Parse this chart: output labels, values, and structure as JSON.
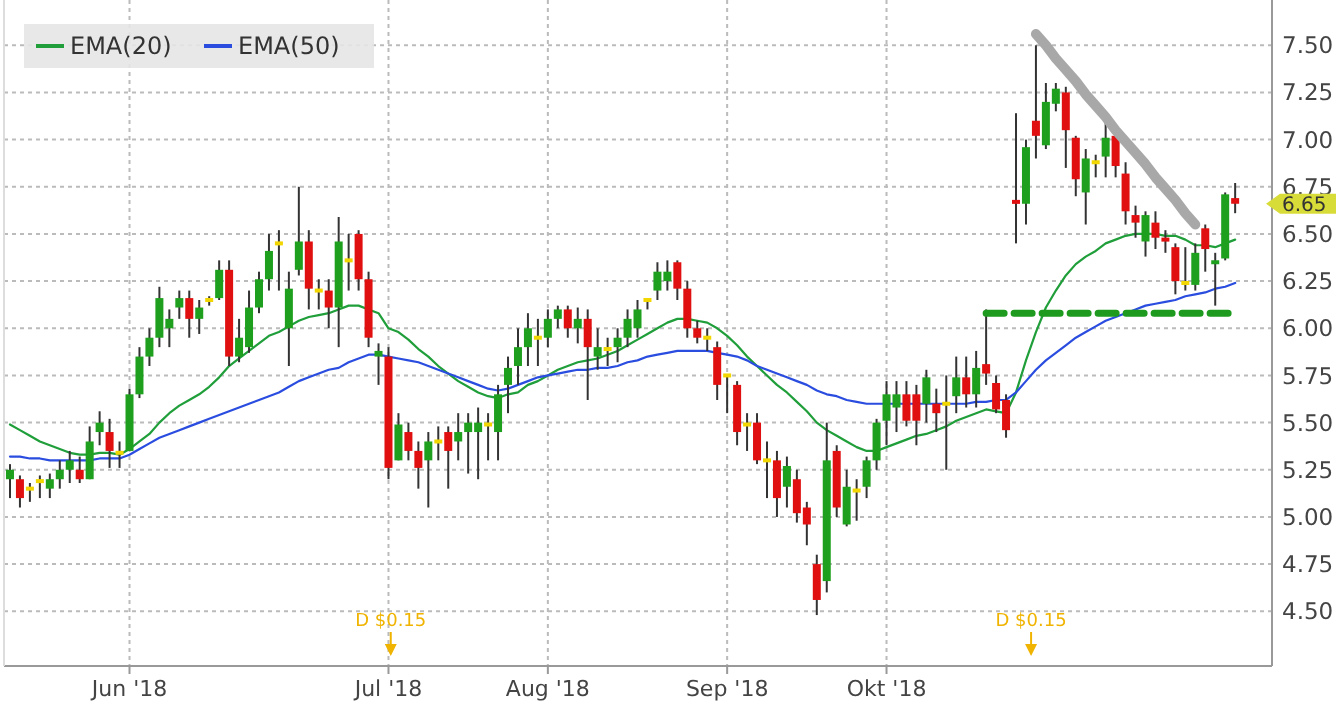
{
  "chart_data": {
    "type": "candlestick",
    "legend": "top left",
    "grid": true,
    "categories": [
      null,
      null,
      null,
      null,
      null,
      null,
      null,
      null,
      null,
      null,
      null,
      null,
      "Jun '18",
      null,
      null,
      null,
      null,
      null,
      null,
      null,
      null,
      null,
      null,
      null,
      null,
      null,
      null,
      null,
      null,
      null,
      null,
      null,
      null,
      null,
      null,
      null,
      null,
      null,
      "Jul '18",
      null,
      null,
      null,
      null,
      null,
      null,
      null,
      null,
      null,
      null,
      null,
      null,
      null,
      null,
      null,
      "Aug '18",
      null,
      null,
      null,
      null,
      null,
      null,
      null,
      null,
      null,
      null,
      null,
      null,
      null,
      null,
      null,
      null,
      null,
      "Sep '18",
      null,
      null,
      null,
      null,
      null,
      null,
      null,
      null,
      null,
      null,
      null,
      null,
      null,
      null,
      null,
      "Okt '18",
      null,
      null,
      null,
      null,
      null,
      null,
      null,
      null,
      null,
      null,
      null,
      null,
      null,
      null,
      null,
      null,
      null,
      null,
      null,
      null,
      null,
      null,
      null,
      null,
      null,
      null,
      null,
      null,
      null,
      null,
      null,
      null,
      null,
      null,
      null
    ],
    "ylim": [
      4.21,
      7.74
    ],
    "yticks": [
      {
        "value": 4.5,
        "label": "4.50"
      },
      {
        "value": 4.75,
        "label": "4.75"
      },
      {
        "value": 5,
        "label": "5.00"
      },
      {
        "value": 5.25,
        "label": "5.25"
      },
      {
        "value": 5.5,
        "label": "5.50"
      },
      {
        "value": 5.75,
        "label": "5.75"
      },
      {
        "value": 6,
        "label": "6.00"
      },
      {
        "value": 6.25,
        "label": "6.25"
      },
      {
        "value": 6.5,
        "label": "6.50"
      },
      {
        "value": 6.75,
        "label": "6.75"
      },
      {
        "value": 7,
        "label": "7.00"
      },
      {
        "value": 7.25,
        "label": "7.25"
      },
      {
        "value": 7.5,
        "label": "7.50"
      }
    ],
    "ohlc": [
      [
        5.2,
        5.28,
        5.1,
        5.25
      ],
      [
        5.2,
        5.22,
        5.05,
        5.1
      ],
      [
        5.15,
        5.18,
        5.08,
        5.15
      ],
      [
        5.19,
        5.22,
        5.1,
        5.19
      ],
      [
        5.15,
        5.23,
        5.1,
        5.2
      ],
      [
        5.2,
        5.3,
        5.15,
        5.25
      ],
      [
        5.25,
        5.35,
        5.18,
        5.3
      ],
      [
        5.25,
        5.32,
        5.18,
        5.2
      ],
      [
        5.2,
        5.48,
        5.2,
        5.4
      ],
      [
        5.45,
        5.56,
        5.38,
        5.5
      ],
      [
        5.45,
        5.52,
        5.26,
        5.35
      ],
      [
        5.34,
        5.4,
        5.26,
        5.34
      ],
      [
        5.35,
        5.68,
        5.35,
        5.65
      ],
      [
        5.65,
        5.9,
        5.63,
        5.85
      ],
      [
        5.85,
        6.0,
        5.8,
        5.95
      ],
      [
        5.95,
        6.22,
        5.9,
        6.16
      ],
      [
        6.0,
        6.1,
        5.9,
        6.05
      ],
      [
        6.11,
        6.2,
        6.05,
        6.16
      ],
      [
        6.16,
        6.2,
        5.95,
        6.05
      ],
      [
        6.05,
        6.15,
        5.97,
        6.11
      ],
      [
        6.15,
        6.17,
        6.12,
        6.15
      ],
      [
        6.16,
        6.36,
        6.15,
        6.31
      ],
      [
        6.31,
        6.36,
        5.8,
        5.85
      ],
      [
        5.85,
        6.05,
        5.82,
        5.95
      ],
      [
        5.9,
        6.2,
        5.87,
        6.11
      ],
      [
        6.11,
        6.3,
        6.08,
        6.26
      ],
      [
        6.26,
        6.5,
        6.2,
        6.41
      ],
      [
        6.45,
        6.52,
        6.2,
        6.45
      ],
      [
        6.0,
        6.3,
        5.8,
        6.21
      ],
      [
        6.31,
        6.75,
        6.28,
        6.46
      ],
      [
        6.46,
        6.52,
        6.1,
        6.21
      ],
      [
        6.2,
        6.26,
        6.1,
        6.2
      ],
      [
        6.2,
        6.26,
        6.0,
        6.11
      ],
      [
        6.11,
        6.59,
        5.9,
        6.46
      ],
      [
        6.36,
        6.5,
        6.2,
        6.36
      ],
      [
        6.5,
        6.52,
        6.2,
        6.26
      ],
      [
        6.26,
        6.3,
        5.9,
        5.95
      ],
      [
        5.85,
        5.92,
        5.7,
        5.88
      ],
      [
        5.85,
        5.9,
        5.2,
        5.26
      ],
      [
        5.3,
        5.55,
        5.3,
        5.49
      ],
      [
        5.45,
        5.5,
        5.3,
        5.35
      ],
      [
        5.35,
        5.4,
        5.15,
        5.26
      ],
      [
        5.3,
        5.45,
        5.05,
        5.4
      ],
      [
        5.4,
        5.48,
        5.3,
        5.4
      ],
      [
        5.45,
        5.48,
        5.15,
        5.35
      ],
      [
        5.4,
        5.55,
        5.3,
        5.45
      ],
      [
        5.45,
        5.55,
        5.23,
        5.5
      ],
      [
        5.45,
        5.58,
        5.2,
        5.5
      ],
      [
        5.49,
        5.55,
        5.3,
        5.49
      ],
      [
        5.45,
        5.7,
        5.3,
        5.65
      ],
      [
        5.7,
        5.85,
        5.55,
        5.79
      ],
      [
        5.8,
        6.0,
        5.7,
        5.9
      ],
      [
        5.9,
        6.08,
        5.8,
        6.0
      ],
      [
        5.95,
        6.05,
        5.8,
        5.95
      ],
      [
        5.95,
        6.1,
        5.9,
        6.05
      ],
      [
        6.05,
        6.12,
        6.0,
        6.1
      ],
      [
        6.1,
        6.12,
        5.95,
        6.0
      ],
      [
        6.0,
        6.11,
        5.92,
        6.05
      ],
      [
        6.05,
        6.1,
        5.62,
        5.9
      ],
      [
        5.85,
        6.0,
        5.78,
        5.9
      ],
      [
        5.89,
        5.95,
        5.8,
        5.89
      ],
      [
        5.9,
        6.0,
        5.82,
        5.95
      ],
      [
        5.95,
        6.1,
        5.9,
        6.05
      ],
      [
        6.0,
        6.15,
        5.95,
        6.1
      ],
      [
        6.15,
        6.16,
        6.1,
        6.15
      ],
      [
        6.2,
        6.35,
        6.15,
        6.3
      ],
      [
        6.25,
        6.36,
        6.2,
        6.3
      ],
      [
        6.35,
        6.36,
        6.15,
        6.21
      ],
      [
        6.21,
        6.25,
        5.95,
        6.0
      ],
      [
        6.0,
        6.04,
        5.92,
        5.95
      ],
      [
        5.95,
        6.0,
        5.88,
        5.95
      ],
      [
        5.9,
        5.93,
        5.62,
        5.7
      ],
      [
        5.75,
        5.75,
        5.55,
        5.75
      ],
      [
        5.7,
        5.72,
        5.38,
        5.45
      ],
      [
        5.49,
        5.55,
        5.35,
        5.49
      ],
      [
        5.5,
        5.55,
        5.28,
        5.3
      ],
      [
        5.3,
        5.4,
        5.1,
        5.3
      ],
      [
        5.3,
        5.35,
        5.0,
        5.1
      ],
      [
        5.16,
        5.32,
        5.05,
        5.27
      ],
      [
        5.2,
        5.25,
        4.97,
        5.02
      ],
      [
        5.05,
        5.08,
        4.85,
        4.96
      ],
      [
        4.75,
        4.8,
        4.48,
        4.56
      ],
      [
        4.66,
        5.5,
        4.6,
        5.3
      ],
      [
        5.35,
        5.38,
        5.0,
        5.05
      ],
      [
        4.96,
        5.25,
        4.95,
        5.16
      ],
      [
        5.14,
        5.2,
        4.98,
        5.14
      ],
      [
        5.16,
        5.32,
        5.1,
        5.3
      ],
      [
        5.3,
        5.52,
        5.25,
        5.5
      ],
      [
        5.51,
        5.72,
        5.38,
        5.65
      ],
      [
        5.58,
        5.72,
        5.45,
        5.65
      ],
      [
        5.65,
        5.72,
        5.48,
        5.51
      ],
      [
        5.65,
        5.7,
        5.38,
        5.51
      ],
      [
        5.6,
        5.78,
        5.5,
        5.74
      ],
      [
        5.6,
        5.68,
        5.45,
        5.55
      ],
      [
        5.6,
        5.75,
        5.25,
        5.6
      ],
      [
        5.64,
        5.85,
        5.55,
        5.74
      ],
      [
        5.74,
        5.85,
        5.58,
        5.65
      ],
      [
        5.65,
        5.88,
        5.58,
        5.79
      ],
      [
        5.81,
        6.1,
        5.7,
        5.76
      ],
      [
        5.71,
        5.75,
        5.55,
        5.57
      ],
      [
        5.62,
        5.65,
        5.42,
        5.46
      ],
      [
        6.68,
        7.14,
        6.45,
        6.66
      ],
      [
        6.66,
        7.0,
        6.55,
        6.96
      ],
      [
        7.1,
        7.5,
        6.9,
        7.02
      ],
      [
        6.97,
        7.3,
        6.95,
        7.2
      ],
      [
        7.19,
        7.3,
        7.15,
        7.27
      ],
      [
        7.25,
        7.28,
        6.85,
        7.05
      ],
      [
        7.01,
        7.02,
        6.7,
        6.79
      ],
      [
        6.72,
        6.95,
        6.55,
        6.9
      ],
      [
        6.88,
        6.92,
        6.8,
        6.88
      ],
      [
        6.91,
        7.1,
        6.8,
        7.01
      ],
      [
        7.02,
        7.02,
        6.8,
        6.86
      ],
      [
        6.82,
        6.88,
        6.55,
        6.62
      ],
      [
        6.6,
        6.65,
        6.48,
        6.56
      ],
      [
        6.46,
        6.62,
        6.38,
        6.6
      ],
      [
        6.56,
        6.62,
        6.42,
        6.48
      ],
      [
        6.48,
        6.52,
        6.4,
        6.46
      ],
      [
        6.43,
        6.45,
        6.18,
        6.25
      ],
      [
        6.24,
        6.43,
        6.2,
        6.24
      ],
      [
        6.23,
        6.45,
        6.2,
        6.4
      ],
      [
        6.53,
        6.55,
        6.3,
        6.42
      ],
      [
        6.34,
        6.4,
        6.12,
        6.36
      ],
      [
        6.37,
        6.72,
        6.36,
        6.71
      ],
      [
        6.69,
        6.77,
        6.61,
        6.66
      ]
    ],
    "series": [
      {
        "name": "EMA(20)",
        "type": "line",
        "color": "#1f9e3a",
        "values": [
          5.49,
          5.46,
          5.43,
          5.4,
          5.38,
          5.36,
          5.34,
          5.33,
          5.33,
          5.34,
          5.34,
          5.33,
          5.36,
          5.4,
          5.44,
          5.5,
          5.55,
          5.59,
          5.62,
          5.65,
          5.69,
          5.74,
          5.8,
          5.84,
          5.88,
          5.92,
          5.96,
          5.98,
          6.01,
          6.04,
          6.06,
          6.07,
          6.08,
          6.1,
          6.12,
          6.12,
          6.1,
          6.08,
          6.0,
          5.98,
          5.94,
          5.89,
          5.85,
          5.8,
          5.76,
          5.72,
          5.69,
          5.66,
          5.64,
          5.63,
          5.65,
          5.66,
          5.7,
          5.72,
          5.75,
          5.78,
          5.8,
          5.82,
          5.83,
          5.84,
          5.86,
          5.88,
          5.91,
          5.94,
          5.97,
          6.0,
          6.03,
          6.05,
          6.05,
          6.04,
          6.03,
          6.0,
          5.96,
          5.91,
          5.85,
          5.8,
          5.75,
          5.7,
          5.66,
          5.61,
          5.56,
          5.5,
          5.46,
          5.43,
          5.4,
          5.37,
          5.35,
          5.35,
          5.37,
          5.39,
          5.41,
          5.43,
          5.44,
          5.46,
          5.48,
          5.51,
          5.53,
          5.55,
          5.57,
          5.56,
          5.55,
          5.66,
          5.83,
          5.98,
          6.11,
          6.2,
          6.28,
          6.34,
          6.38,
          6.41,
          6.45,
          6.47,
          6.49,
          6.5,
          6.5,
          6.5,
          6.49,
          6.49,
          6.47,
          6.44,
          6.44,
          6.43,
          6.45,
          6.47
        ]
      },
      {
        "name": "EMA(50)",
        "type": "line",
        "color": "#2a4de0",
        "values": [
          5.32,
          5.32,
          5.31,
          5.31,
          5.3,
          5.3,
          5.3,
          5.3,
          5.3,
          5.31,
          5.31,
          5.31,
          5.33,
          5.36,
          5.39,
          5.42,
          5.44,
          5.46,
          5.48,
          5.5,
          5.52,
          5.54,
          5.56,
          5.58,
          5.6,
          5.62,
          5.64,
          5.66,
          5.69,
          5.72,
          5.74,
          5.76,
          5.78,
          5.79,
          5.82,
          5.84,
          5.86,
          5.86,
          5.85,
          5.84,
          5.83,
          5.82,
          5.8,
          5.78,
          5.76,
          5.74,
          5.72,
          5.7,
          5.68,
          5.67,
          5.68,
          5.7,
          5.72,
          5.74,
          5.75,
          5.76,
          5.77,
          5.78,
          5.78,
          5.79,
          5.79,
          5.8,
          5.82,
          5.83,
          5.85,
          5.86,
          5.87,
          5.88,
          5.88,
          5.88,
          5.88,
          5.87,
          5.86,
          5.85,
          5.83,
          5.8,
          5.78,
          5.76,
          5.74,
          5.72,
          5.7,
          5.67,
          5.65,
          5.64,
          5.62,
          5.61,
          5.6,
          5.6,
          5.6,
          5.6,
          5.6,
          5.6,
          5.6,
          5.6,
          5.6,
          5.6,
          5.6,
          5.61,
          5.61,
          5.62,
          5.62,
          5.66,
          5.72,
          5.78,
          5.83,
          5.87,
          5.91,
          5.95,
          5.98,
          6.01,
          6.04,
          6.06,
          6.08,
          6.1,
          6.12,
          6.13,
          6.14,
          6.15,
          6.17,
          6.18,
          6.19,
          6.21,
          6.22,
          6.24
        ]
      },
      {
        "type": "line",
        "color": "#1e9a1e",
        "line_style": "dashed",
        "values": [
          null,
          null,
          null,
          null,
          null,
          null,
          null,
          null,
          null,
          null,
          null,
          null,
          null,
          null,
          null,
          null,
          null,
          null,
          null,
          null,
          null,
          null,
          null,
          null,
          null,
          null,
          null,
          null,
          null,
          null,
          null,
          null,
          null,
          null,
          null,
          null,
          null,
          null,
          null,
          null,
          null,
          null,
          null,
          null,
          null,
          null,
          null,
          null,
          null,
          null,
          null,
          null,
          null,
          null,
          null,
          null,
          null,
          null,
          null,
          null,
          null,
          null,
          null,
          null,
          null,
          null,
          null,
          null,
          null,
          null,
          null,
          null,
          null,
          null,
          null,
          null,
          null,
          null,
          null,
          null,
          null,
          null,
          null,
          null,
          null,
          null,
          null,
          null,
          null,
          null,
          null,
          null,
          null,
          null,
          null,
          null,
          null,
          null,
          6.08,
          6.08,
          6.08,
          6.08,
          6.08,
          6.08,
          6.08,
          6.08,
          6.08,
          6.08,
          6.08,
          6.08,
          6.08,
          6.08,
          6.08,
          6.08,
          6.08,
          6.08,
          6.08,
          6.08,
          6.08,
          6.08,
          6.08,
          6.08,
          6.08,
          6.08
        ]
      },
      {
        "type": "line",
        "color": "#a8a8a8",
        "line_style": "solid",
        "values": [
          null,
          null,
          null,
          null,
          null,
          null,
          null,
          null,
          null,
          null,
          null,
          null,
          null,
          null,
          null,
          null,
          null,
          null,
          null,
          null,
          null,
          null,
          null,
          null,
          null,
          null,
          null,
          null,
          null,
          null,
          null,
          null,
          null,
          null,
          null,
          null,
          null,
          null,
          null,
          null,
          null,
          null,
          null,
          null,
          null,
          null,
          null,
          null,
          null,
          null,
          null,
          null,
          null,
          null,
          null,
          null,
          null,
          null,
          null,
          null,
          null,
          null,
          null,
          null,
          null,
          null,
          null,
          null,
          null,
          null,
          null,
          null,
          null,
          null,
          null,
          null,
          null,
          null,
          null,
          null,
          null,
          null,
          null,
          null,
          null,
          null,
          null,
          null,
          null,
          null,
          null,
          null,
          null,
          null,
          null,
          null,
          null,
          null,
          null,
          null,
          null,
          null,
          null,
          7.56,
          7.5,
          7.43,
          7.37,
          7.31,
          7.24,
          7.18,
          7.12,
          7.05,
          6.99,
          6.93,
          6.87,
          6.8,
          6.74,
          6.68,
          6.61,
          6.55,
          null,
          null,
          null,
          null
        ]
      }
    ],
    "annotations": [
      "D $0.15",
      "D $0.15",
      "6.65"
    ]
  }
}
